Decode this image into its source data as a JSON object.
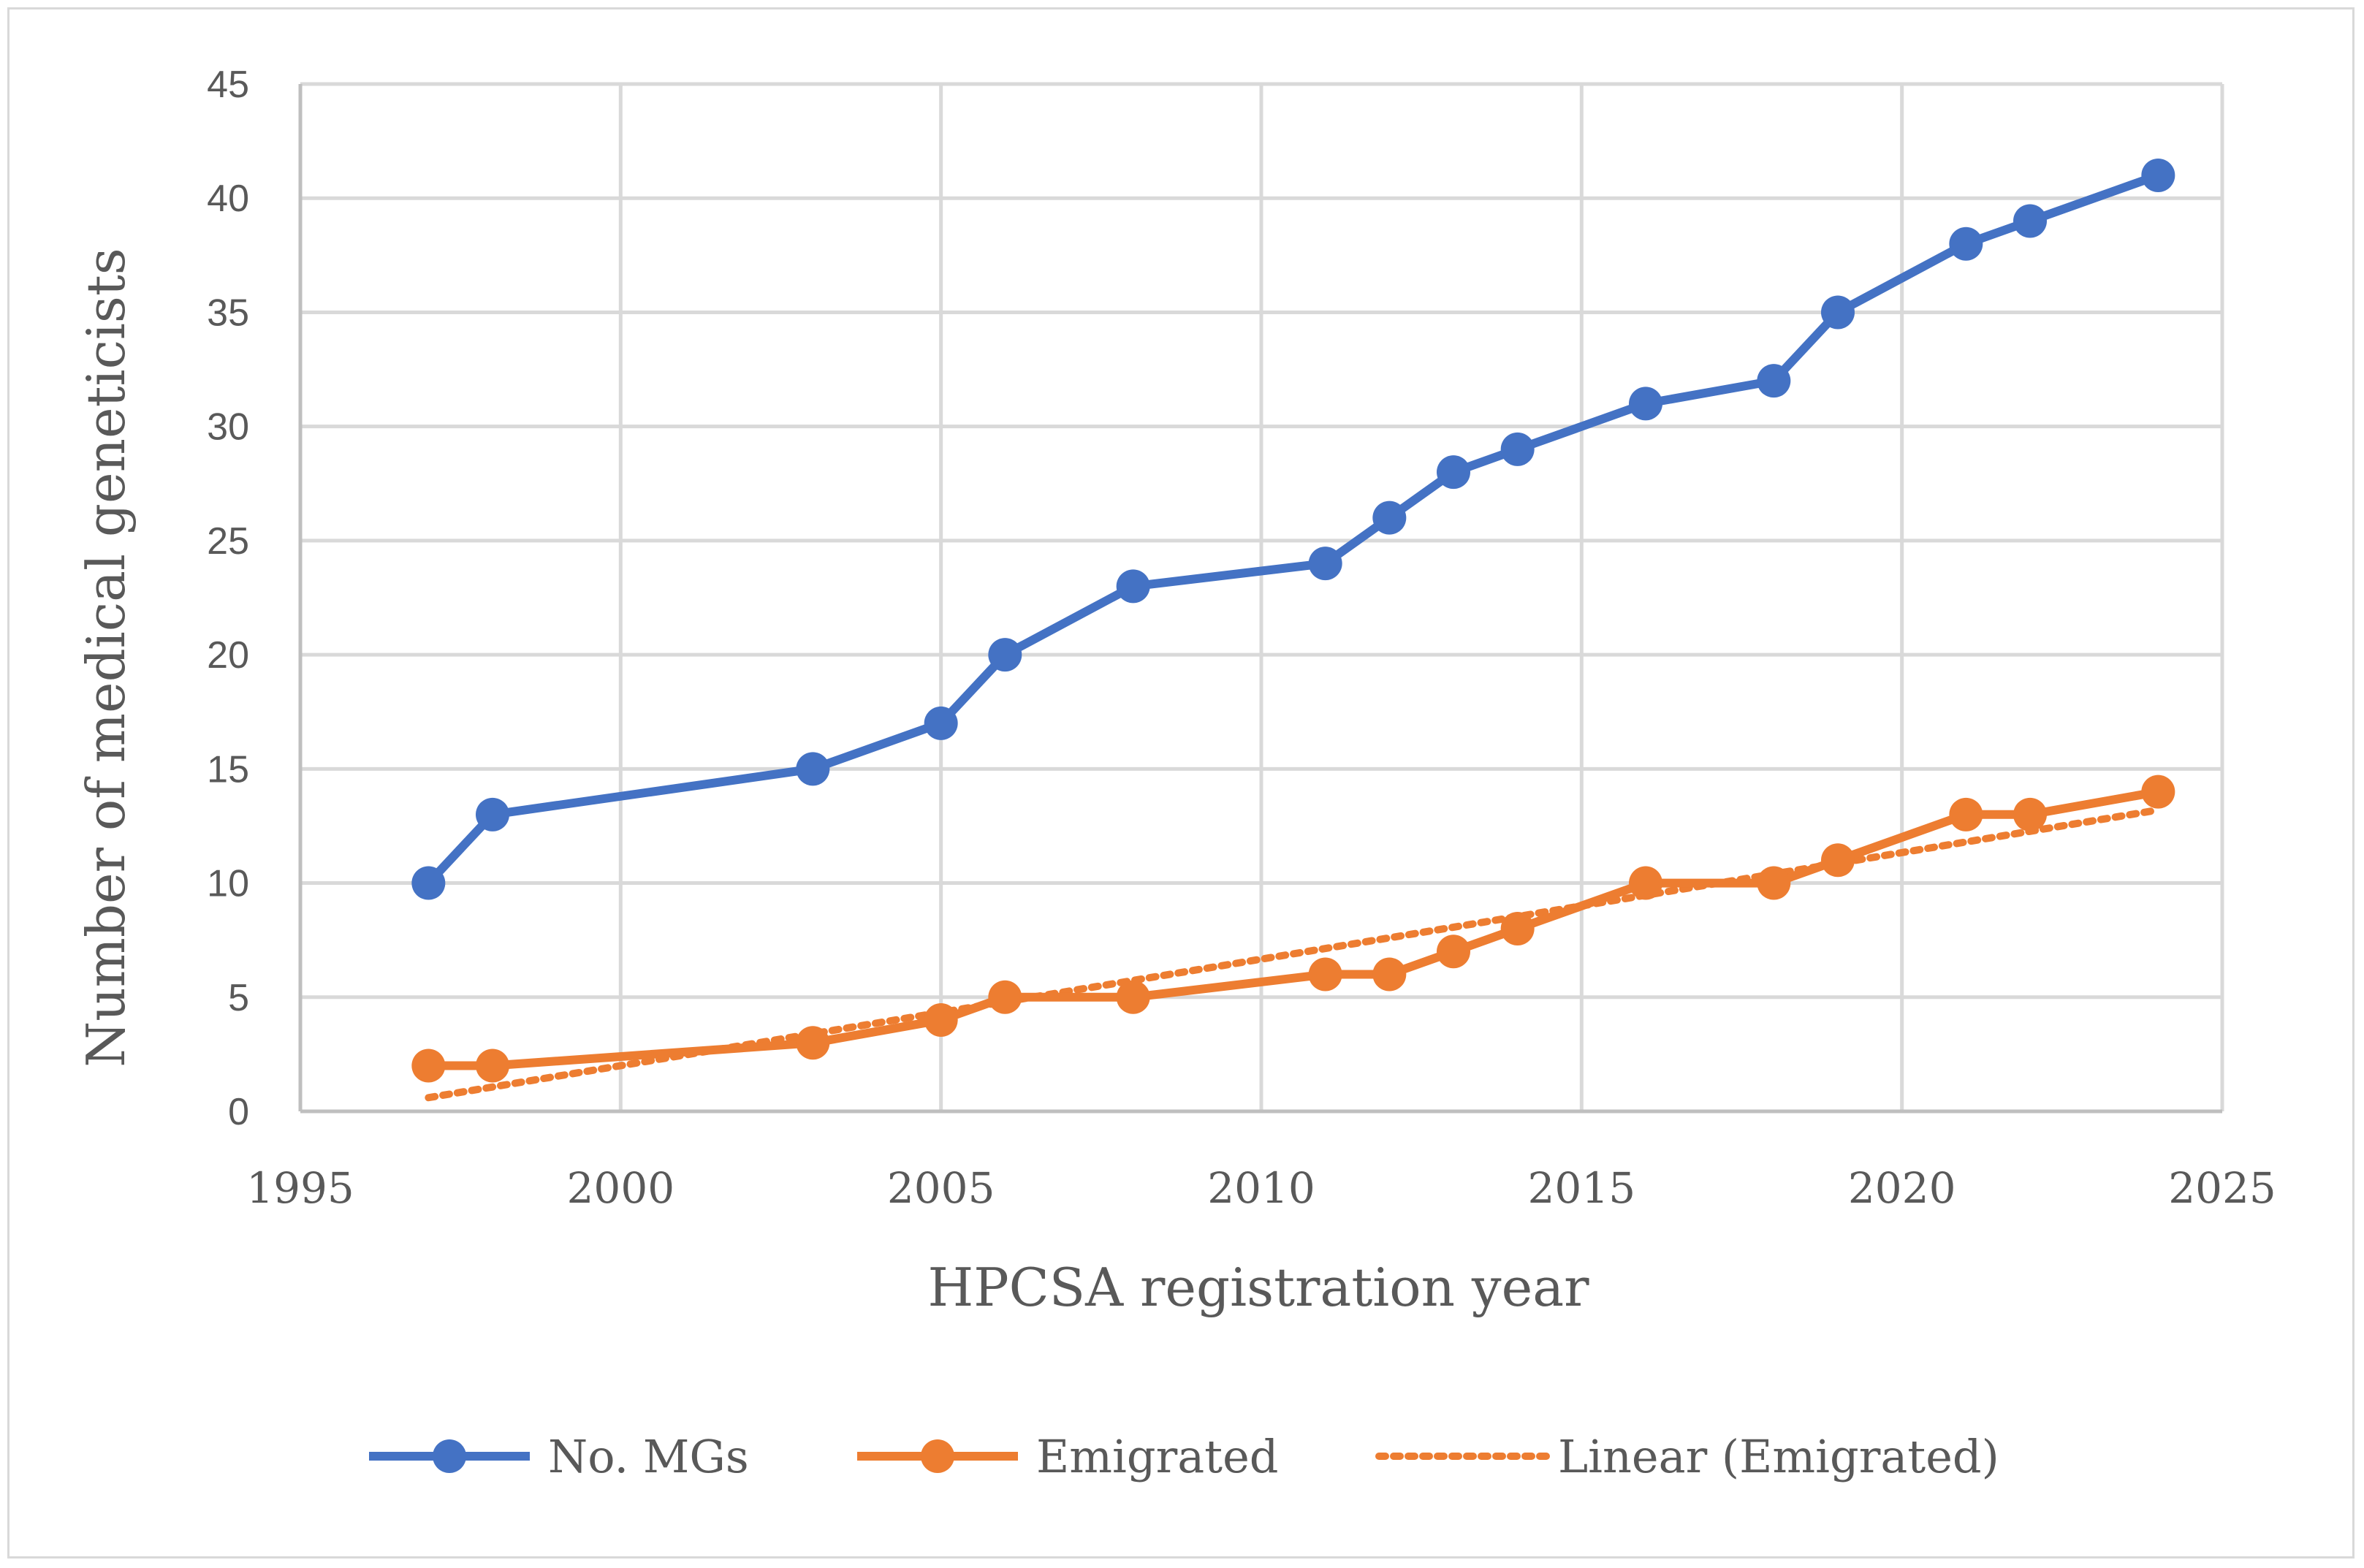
{
  "chart_data": {
    "type": "line",
    "title": "",
    "xlabel": "HPCSA registration year",
    "ylabel": "Number of medical geneticists",
    "xlim": [
      1995,
      2025
    ],
    "ylim": [
      0,
      45
    ],
    "xticks": [
      1995,
      2000,
      2005,
      2010,
      2015,
      2020,
      2025
    ],
    "yticks": [
      0,
      5,
      10,
      15,
      20,
      25,
      30,
      35,
      40,
      45
    ],
    "grid": true,
    "legend_position": "bottom",
    "series": [
      {
        "name": "No. MGs",
        "color": "#4472c4",
        "marker": "circle",
        "x": [
          1997,
          1998,
          2003,
          2005,
          2006,
          2008,
          2011,
          2012,
          2013,
          2014,
          2016,
          2018,
          2019,
          2021,
          2022,
          2024
        ],
        "y": [
          10,
          13,
          15,
          17,
          20,
          23,
          24,
          26,
          28,
          29,
          31,
          32,
          35,
          38,
          39,
          41
        ]
      },
      {
        "name": "Emigrated",
        "color": "#ed7d31",
        "marker": "circle",
        "x": [
          1997,
          1998,
          2003,
          2005,
          2006,
          2008,
          2011,
          2012,
          2013,
          2014,
          2016,
          2018,
          2019,
          2021,
          2022,
          2024
        ],
        "y": [
          2,
          2,
          3,
          4,
          5,
          5,
          6,
          6,
          7,
          8,
          10,
          10,
          11,
          13,
          13,
          14
        ]
      }
    ],
    "trendline": {
      "name": "Linear (Emigrated)",
      "of": "Emigrated",
      "type": "linear",
      "style": "dotted",
      "color": "#ed7d31",
      "x": [
        1997,
        2024
      ],
      "y": [
        0.6,
        13.2
      ]
    }
  }
}
